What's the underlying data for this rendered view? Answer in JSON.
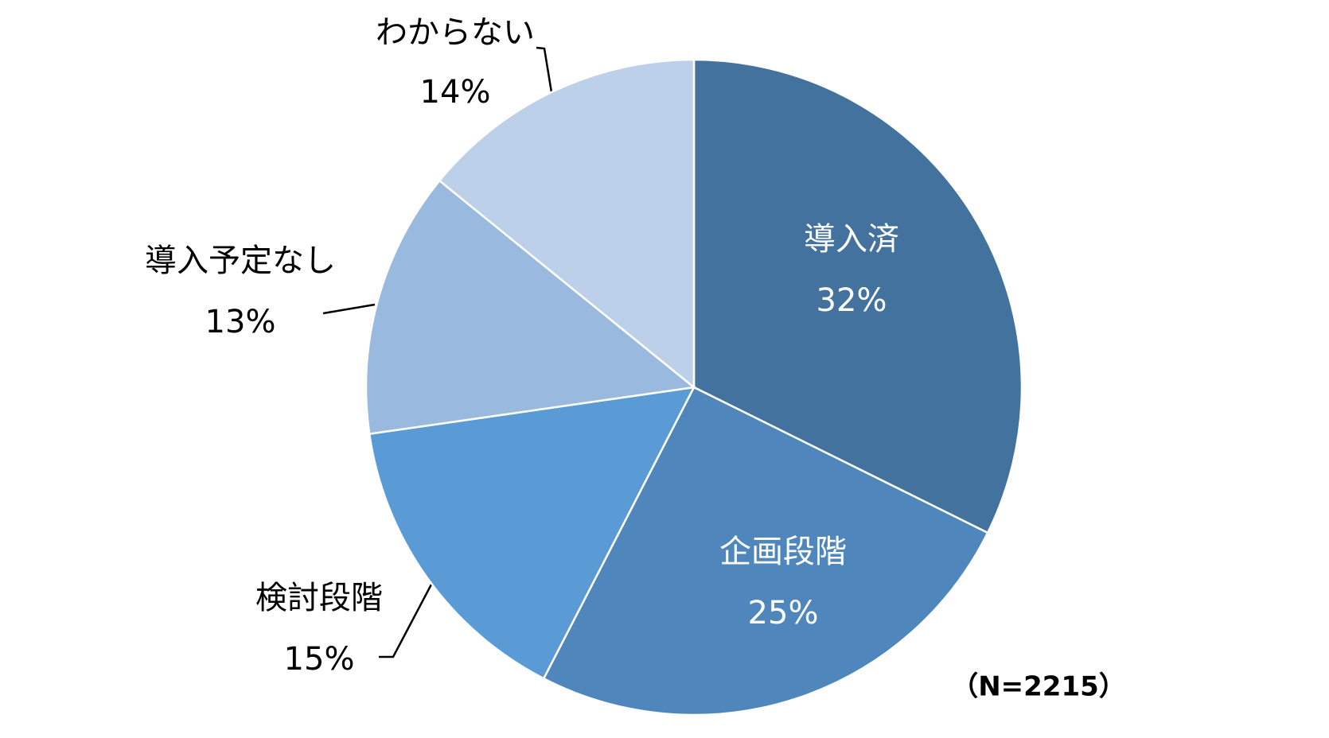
{
  "chart_data": {
    "type": "pie",
    "categories": [
      "導入済",
      "企画段階",
      "検討段階",
      "導入予定なし",
      "わからない"
    ],
    "values": [
      32,
      25,
      15,
      13,
      14
    ],
    "value_labels": [
      "32%",
      "25%",
      "15%",
      "13%",
      "14%"
    ],
    "colors": [
      "#44729e",
      "#4f87bd",
      "#5b9bd5",
      "#9ab9de",
      "#bdd0e9"
    ],
    "annotation": "（N=2215）"
  }
}
